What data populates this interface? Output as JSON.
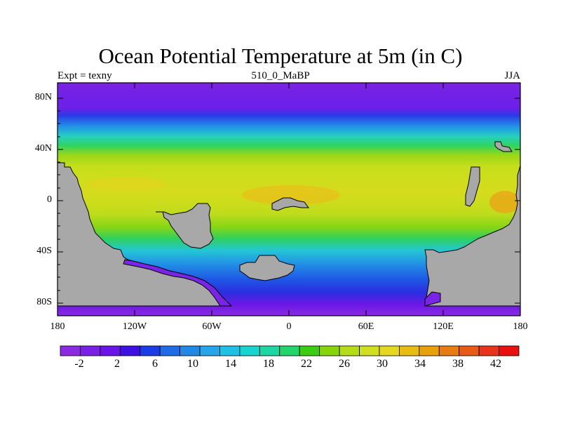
{
  "title": "Ocean Potential Temperature at 5m (in C)",
  "left_string": "Expt = texny",
  "center_string": "510_0_MaBP",
  "right_string": "JJA",
  "y_tick_labels": [
    "80N",
    "40N",
    "0",
    "40S",
    "80S"
  ],
  "x_tick_labels": [
    "180",
    "120W",
    "60W",
    "0",
    "60E",
    "120E",
    "180"
  ],
  "colorbar": {
    "labels": [
      "-2",
      "2",
      "6",
      "10",
      "14",
      "18",
      "22",
      "26",
      "30",
      "34",
      "38",
      "42"
    ],
    "colors": [
      "#8a2be2",
      "#7a1fe6",
      "#6a14e8",
      "#3b10e0",
      "#1a3ce6",
      "#1f6ae6",
      "#2288e6",
      "#26a6e8",
      "#20c0e6",
      "#18d4d0",
      "#1ed6a2",
      "#24d46c",
      "#3ccc14",
      "#88d40c",
      "#b4dc18",
      "#d0e020",
      "#e6d820",
      "#e8bc10",
      "#e8a00c",
      "#e87c14",
      "#e85a18",
      "#e8341c",
      "#e81010"
    ]
  },
  "land_color": "#a8a8a8"
}
